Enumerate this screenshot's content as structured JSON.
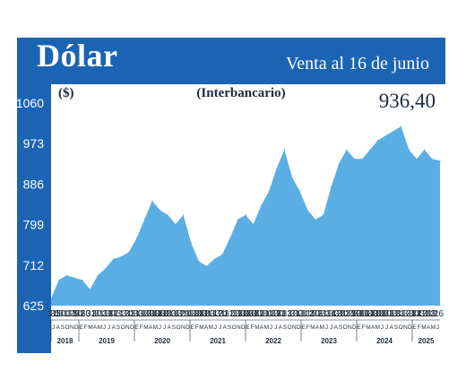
{
  "header": {
    "title": "Dólar",
    "subtitle": "Venta al 16 de junio"
  },
  "chart_data": {
    "type": "area",
    "unit_label": "($)",
    "note": "(Interbancario)",
    "last_value_label": "936,40",
    "ylim": [
      625,
      1060
    ],
    "yticks": [
      625,
      712,
      799,
      886,
      973,
      1060
    ],
    "color": "#5aaee4",
    "day_labels": [
      "31",
      "31",
      "5",
      "30",
      "31",
      "1",
      "1",
      "31",
      "29",
      "30",
      "31",
      "2",
      "30",
      "3",
      "31",
      "2",
      "30",
      "31",
      "1",
      "1",
      "31",
      "30",
      "31",
      "2",
      "3",
      "1",
      "12",
      "31",
      "31",
      "3",
      "31",
      "30",
      "3",
      "1",
      "30",
      "30",
      "31",
      "30",
      "31",
      "30",
      "31",
      "31",
      "31",
      "30",
      "3",
      "1",
      "31",
      "31",
      "29",
      "1",
      "1",
      "31",
      "31",
      "31",
      "30",
      "31",
      "31",
      "30",
      "3",
      "1",
      "12",
      "31",
      "31",
      "1",
      "31",
      "2",
      "1",
      "31",
      "30",
      "31",
      "31",
      "30",
      "30",
      "31",
      "30",
      "31",
      "2",
      "31",
      "30",
      "1",
      "1",
      "31",
      "30",
      "31",
      "1",
      "31",
      "3",
      "3",
      "31",
      "30",
      "2",
      "1",
      "31",
      "12",
      "1",
      "30",
      "31",
      "2",
      "31",
      "31",
      "3",
      "3",
      "4",
      "12",
      "31",
      "31",
      "31",
      "2",
      "31",
      "28",
      "30",
      "31",
      "30",
      "30",
      "1",
      "31",
      "30",
      "31",
      "31",
      "31",
      "30",
      "30",
      "31",
      "1",
      "31",
      "31",
      "31",
      "3",
      "3",
      "2",
      "31",
      "30",
      "31",
      "2",
      "12",
      "31",
      "31",
      "31",
      "3",
      "2",
      "16"
    ],
    "month_labels": [
      "J",
      "A",
      "S",
      "O",
      "N",
      "D",
      "E",
      "F",
      "M",
      "A",
      "M",
      "J",
      "J",
      "A",
      "S",
      "O",
      "N",
      "D",
      "E",
      "F",
      "M",
      "A",
      "M",
      "J",
      "J",
      "A",
      "S",
      "O",
      "N",
      "D",
      "E",
      "F",
      "M",
      "A",
      "M",
      "J",
      "J",
      "A",
      "S",
      "O",
      "N",
      "D",
      "E",
      "F",
      "M",
      "A",
      "M",
      "J",
      "J",
      "A",
      "S",
      "O",
      "N",
      "D",
      "E",
      "F",
      "M",
      "A",
      "M",
      "J",
      "J",
      "A",
      "S",
      "O",
      "N",
      "D",
      "E",
      "F",
      "M",
      "A",
      "M",
      "J",
      "J",
      "A",
      "S",
      "O",
      "N",
      "D",
      "E",
      "F",
      "M",
      "A",
      "M",
      "J"
    ],
    "years": [
      "2018",
      "2019",
      "2020",
      "2021",
      "2022",
      "2023",
      "2024",
      "2025"
    ],
    "x": [
      0,
      0.02,
      0.04,
      0.06,
      0.08,
      0.1,
      0.12,
      0.14,
      0.16,
      0.18,
      0.2,
      0.22,
      0.24,
      0.26,
      0.28,
      0.3,
      0.32,
      0.34,
      0.36,
      0.38,
      0.4,
      0.42,
      0.44,
      0.46,
      0.48,
      0.5,
      0.52,
      0.54,
      0.56,
      0.58,
      0.6,
      0.62,
      0.64,
      0.66,
      0.68,
      0.7,
      0.72,
      0.74,
      0.76,
      0.78,
      0.8,
      0.82,
      0.84,
      0.86,
      0.88,
      0.9,
      0.92,
      0.94,
      0.96,
      0.98,
      1
    ],
    "values": [
      640,
      680,
      690,
      685,
      680,
      660,
      690,
      705,
      725,
      730,
      740,
      770,
      810,
      850,
      830,
      820,
      800,
      820,
      760,
      720,
      710,
      725,
      735,
      770,
      810,
      820,
      800,
      840,
      870,
      920,
      960,
      900,
      870,
      830,
      810,
      820,
      880,
      930,
      960,
      940,
      940,
      960,
      980,
      990,
      1000,
      1010,
      960,
      940,
      960,
      940,
      936
    ]
  }
}
